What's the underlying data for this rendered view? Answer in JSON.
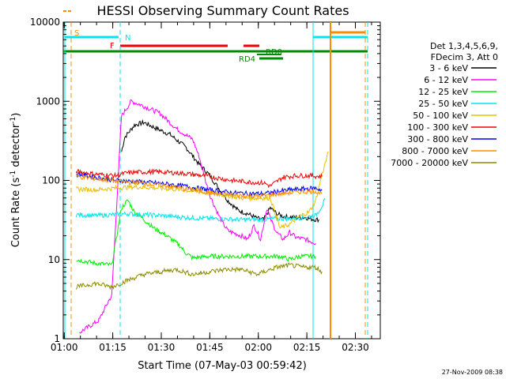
{
  "chart_data": {
    "type": "line",
    "title": "HESSI Observing Summary Count Rates",
    "xlabel": "Start Time (07-May-03 00:59:42)",
    "ylabel": "Count Rate (s",
    "ylabel_sup1": "-1",
    "ylabel_mid": " detector",
    "ylabel_sup2": "-1",
    "ylabel_end": ")",
    "y_scale": "log",
    "ylim": [
      1,
      10000
    ],
    "xlim_minutes": [
      0,
      98
    ],
    "grid": false,
    "legend_placement": "outside-right",
    "timestamp": "27-Nov-2009 08:38",
    "x_ticks": [
      {
        "label": "01:00",
        "minute": 0.3
      },
      {
        "label": "01:15",
        "minute": 15.3
      },
      {
        "label": "01:30",
        "minute": 30.3
      },
      {
        "label": "01:45",
        "minute": 45.3
      },
      {
        "label": "02:00",
        "minute": 60.3
      },
      {
        "label": "02:15",
        "minute": 75.3
      },
      {
        "label": "02:30",
        "minute": 90.3
      }
    ],
    "y_ticks": [
      {
        "label": "1",
        "value": 1
      },
      {
        "label": "10",
        "value": 10
      },
      {
        "label": "100",
        "value": 100
      },
      {
        "label": "1000",
        "value": 1000
      },
      {
        "label": "10000",
        "value": 10000
      }
    ],
    "legend_header": [
      "Det 1,3,4,5,6,9,",
      "FDecim 3, Att 0"
    ],
    "series": [
      {
        "name": "3 - 6 keV",
        "color": "#000000",
        "points": [
          [
            18,
            230
          ],
          [
            19,
            350
          ],
          [
            22,
            500
          ],
          [
            25,
            540
          ],
          [
            28,
            470
          ],
          [
            33,
            380
          ],
          [
            38,
            260
          ],
          [
            42,
            160
          ],
          [
            45,
            120
          ],
          [
            48,
            80
          ],
          [
            51,
            55
          ],
          [
            54,
            42
          ],
          [
            57,
            38
          ],
          [
            60,
            33
          ],
          [
            62,
            32
          ],
          [
            64,
            45
          ],
          [
            66,
            38
          ],
          [
            68,
            35
          ],
          [
            72,
            34
          ],
          [
            75,
            34
          ],
          [
            76,
            33
          ],
          [
            78,
            32
          ],
          [
            79,
            32
          ]
        ]
      },
      {
        "name": "6 - 12 keV",
        "color": "#ff00ff",
        "points": [
          [
            5,
            1.2
          ],
          [
            11,
            1.7
          ],
          [
            14,
            3
          ],
          [
            15,
            3.5
          ],
          [
            18,
            650
          ],
          [
            21,
            1000
          ],
          [
            24,
            900
          ],
          [
            30,
            700
          ],
          [
            35,
            450
          ],
          [
            40,
            330
          ],
          [
            42,
            200
          ],
          [
            45,
            70
          ],
          [
            47,
            45
          ],
          [
            49,
            30
          ],
          [
            51,
            23
          ],
          [
            55,
            20
          ],
          [
            57,
            18
          ],
          [
            59,
            27
          ],
          [
            61,
            18
          ],
          [
            63,
            45
          ],
          [
            64,
            33
          ],
          [
            66,
            22
          ],
          [
            68,
            18
          ],
          [
            70,
            22
          ],
          [
            72,
            19
          ],
          [
            75,
            18
          ],
          [
            78,
            16
          ]
        ]
      },
      {
        "name": "12 - 25 keV",
        "color": "#00ee00",
        "points": [
          [
            4,
            10
          ],
          [
            10,
            9
          ],
          [
            15,
            8.5
          ],
          [
            18,
            45
          ],
          [
            20,
            56
          ],
          [
            22,
            40
          ],
          [
            25,
            32
          ],
          [
            28,
            25
          ],
          [
            32,
            20
          ],
          [
            36,
            15
          ],
          [
            38,
            12
          ],
          [
            40,
            10.5
          ],
          [
            45,
            11
          ],
          [
            50,
            11
          ],
          [
            55,
            11
          ],
          [
            60,
            11
          ],
          [
            63,
            11
          ],
          [
            67,
            11
          ],
          [
            70,
            10
          ],
          [
            73,
            11
          ],
          [
            78,
            11
          ]
        ]
      },
      {
        "name": "25 - 50 keV",
        "color": "#00e5ee",
        "points": [
          [
            4,
            37
          ],
          [
            10,
            36
          ],
          [
            16,
            37
          ],
          [
            20,
            38
          ],
          [
            24,
            37
          ],
          [
            30,
            36
          ],
          [
            38,
            34
          ],
          [
            45,
            33
          ],
          [
            55,
            32
          ],
          [
            62,
            32
          ],
          [
            66,
            33
          ],
          [
            70,
            33
          ],
          [
            74,
            34
          ],
          [
            78,
            36
          ],
          [
            80,
            48
          ],
          [
            81,
            58
          ]
        ]
      },
      {
        "name": "50 - 100 keV",
        "color": "#e5c100",
        "points": [
          [
            4,
            78
          ],
          [
            10,
            76
          ],
          [
            16,
            80
          ],
          [
            22,
            83
          ],
          [
            30,
            80
          ],
          [
            38,
            75
          ],
          [
            45,
            70
          ],
          [
            50,
            65
          ],
          [
            55,
            60
          ],
          [
            60,
            60
          ],
          [
            64,
            60
          ],
          [
            67,
            25
          ],
          [
            70,
            28
          ],
          [
            73,
            35
          ],
          [
            76,
            40
          ],
          [
            78,
            55
          ],
          [
            80,
            120
          ],
          [
            82,
            230
          ]
        ]
      },
      {
        "name": "100 - 300 keV",
        "color": "#ee0000",
        "points": [
          [
            4,
            130
          ],
          [
            10,
            120
          ],
          [
            16,
            115
          ],
          [
            20,
            125
          ],
          [
            25,
            128
          ],
          [
            30,
            128
          ],
          [
            38,
            122
          ],
          [
            45,
            112
          ],
          [
            52,
            100
          ],
          [
            58,
            95
          ],
          [
            62,
            93
          ],
          [
            64,
            85
          ],
          [
            68,
            110
          ],
          [
            72,
            115
          ],
          [
            76,
            115
          ],
          [
            80,
            112
          ]
        ]
      },
      {
        "name": "300 - 800 keV",
        "color": "#0000ee",
        "points": [
          [
            4,
            120
          ],
          [
            10,
            110
          ],
          [
            16,
            100
          ],
          [
            22,
            97
          ],
          [
            30,
            92
          ],
          [
            38,
            84
          ],
          [
            45,
            76
          ],
          [
            52,
            70
          ],
          [
            58,
            68
          ],
          [
            62,
            68
          ],
          [
            66,
            72
          ],
          [
            70,
            76
          ],
          [
            74,
            78
          ],
          [
            78,
            80
          ],
          [
            80,
            75
          ]
        ]
      },
      {
        "name": "800 - 7000 keV",
        "color": "#ff8c00",
        "points": [
          [
            4,
            112
          ],
          [
            10,
            105
          ],
          [
            16,
            98
          ],
          [
            22,
            94
          ],
          [
            30,
            88
          ],
          [
            38,
            78
          ],
          [
            45,
            70
          ],
          [
            52,
            65
          ],
          [
            58,
            63
          ],
          [
            62,
            64
          ],
          [
            66,
            67
          ],
          [
            70,
            70
          ],
          [
            74,
            72
          ],
          [
            78,
            73
          ],
          [
            80,
            68
          ]
        ]
      },
      {
        "name": "7000 - 20000 keV",
        "color": "#8b8b00",
        "points": [
          [
            4,
            4.5
          ],
          [
            10,
            5
          ],
          [
            15,
            4.5
          ],
          [
            20,
            5.5
          ],
          [
            25,
            6.5
          ],
          [
            30,
            7
          ],
          [
            35,
            7.5
          ],
          [
            40,
            6.5
          ],
          [
            45,
            7
          ],
          [
            50,
            7.5
          ],
          [
            55,
            7.5
          ],
          [
            60,
            6.5
          ],
          [
            62,
            7
          ],
          [
            66,
            8
          ],
          [
            70,
            8.5
          ],
          [
            74,
            8
          ],
          [
            78,
            8
          ],
          [
            80,
            7
          ]
        ]
      }
    ],
    "annotations": [
      {
        "text": "S",
        "color": "#ff8c00"
      },
      {
        "text": "N",
        "color": "#00e5ee"
      },
      {
        "text": "F",
        "color": "#ee0000"
      },
      {
        "text": "RD0",
        "color": "#008b00"
      },
      {
        "text": "RD4",
        "color": "#008b00"
      }
    ]
  }
}
